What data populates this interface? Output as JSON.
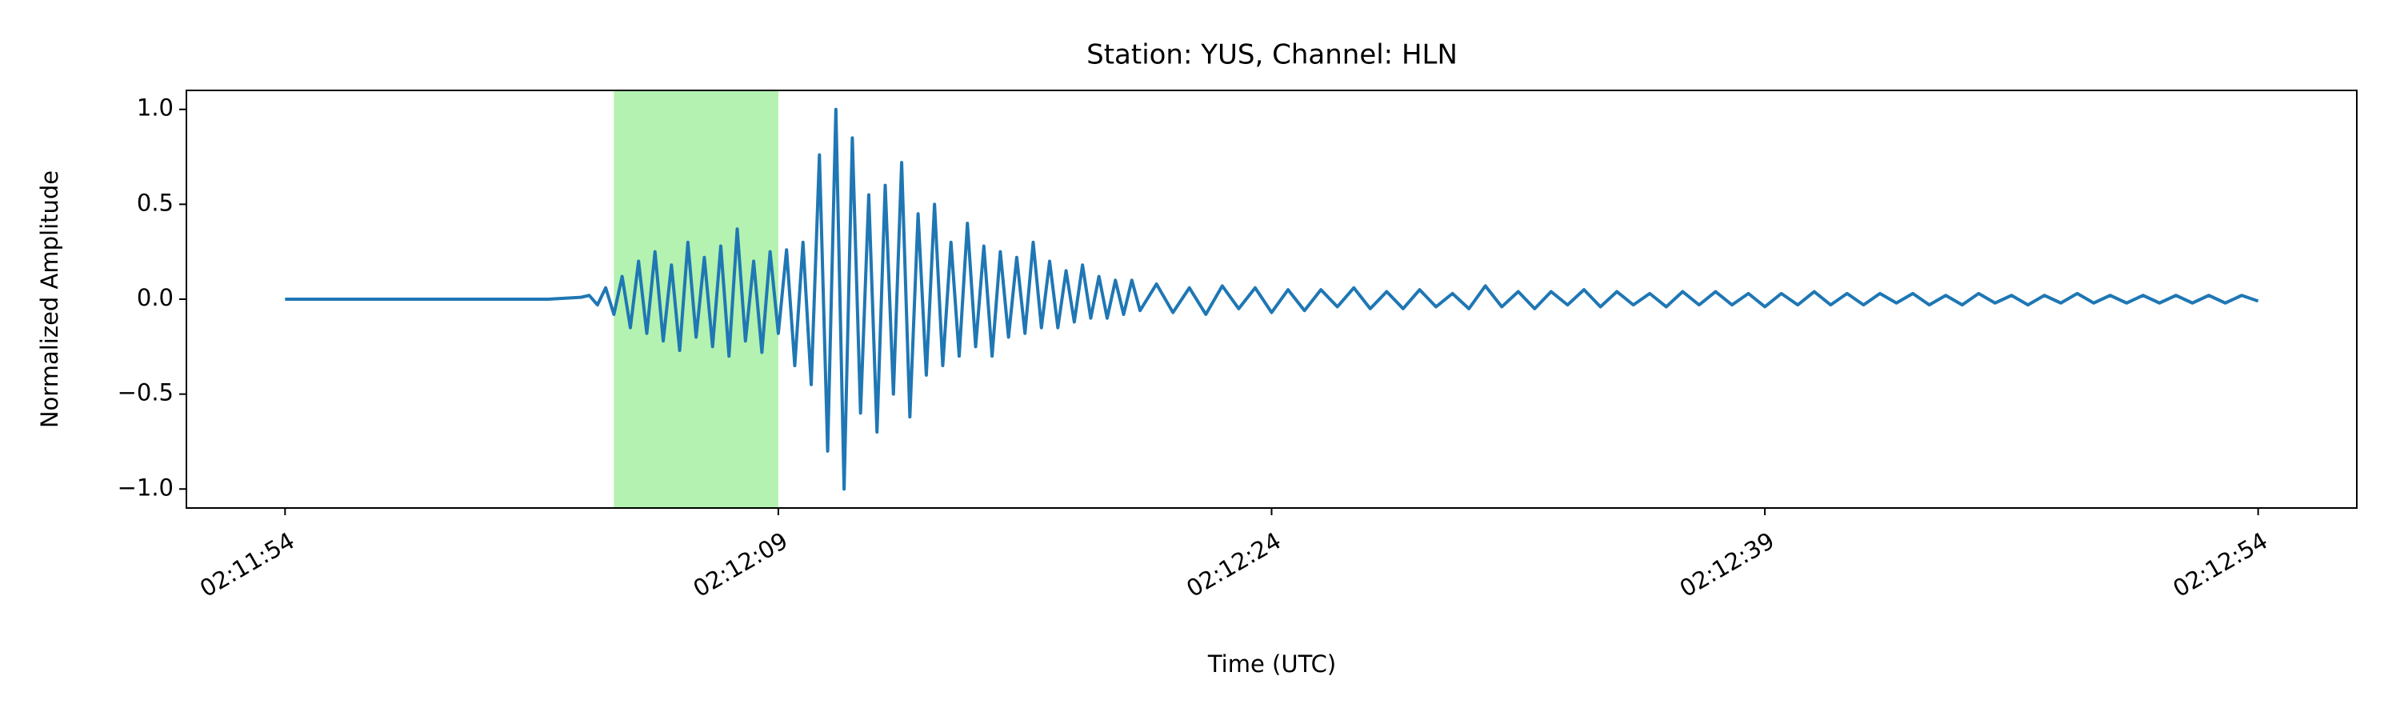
{
  "chart_data": {
    "type": "line",
    "title": "Station: YUS, Channel: HLN",
    "x_label": "Time (UTC)",
    "y_label": "Normalized Amplitude",
    "color": "#1f77b4",
    "x": [
      7914,
      7915,
      7916,
      7917,
      7918,
      7919,
      7920,
      7921,
      7922,
      7923,
      7923.25,
      7923.5,
      7923.75,
      7924,
      7924.25,
      7924.5,
      7924.75,
      7925,
      7925.25,
      7925.5,
      7925.75,
      7926,
      7926.25,
      7926.5,
      7926.75,
      7927,
      7927.25,
      7927.5,
      7927.75,
      7928,
      7928.25,
      7928.5,
      7928.75,
      7929,
      7929.25,
      7929.5,
      7929.75,
      7930,
      7930.25,
      7930.5,
      7930.75,
      7931,
      7931.25,
      7931.5,
      7931.75,
      7932,
      7932.25,
      7932.5,
      7932.75,
      7933,
      7933.25,
      7933.5,
      7933.75,
      7934,
      7934.25,
      7934.5,
      7934.75,
      7935,
      7935.25,
      7935.5,
      7935.75,
      7936,
      7936.25,
      7936.5,
      7936.75,
      7937,
      7937.25,
      7937.5,
      7937.75,
      7938,
      7938.25,
      7938.5,
      7938.75,
      7939,
      7939.25,
      7939.5,
      7939.75,
      7940,
      7940.5,
      7941,
      7941.5,
      7942,
      7942.5,
      7943,
      7943.5,
      7944,
      7944.5,
      7945,
      7945.5,
      7946,
      7946.5,
      7947,
      7947.5,
      7948,
      7948.5,
      7949,
      7949.5,
      7950,
      7950.5,
      7951,
      7951.5,
      7952,
      7952.5,
      7953,
      7953.5,
      7954,
      7954.5,
      7955,
      7955.5,
      7956,
      7956.5,
      7957,
      7957.5,
      7958,
      7958.5,
      7959,
      7959.5,
      7960,
      7960.5,
      7961,
      7961.5,
      7962,
      7962.5,
      7963,
      7963.5,
      7964,
      7964.5,
      7965,
      7965.5,
      7966,
      7966.5,
      7967,
      7967.5,
      7968,
      7968.5,
      7969,
      7969.5,
      7970,
      7970.5,
      7971,
      7971.5,
      7972,
      7972.5,
      7973,
      7973.5,
      7974
    ],
    "values": [
      0,
      0,
      0,
      0,
      0,
      0,
      0,
      0,
      0,
      0.01,
      0.02,
      -0.03,
      0.06,
      -0.08,
      0.12,
      -0.15,
      0.2,
      -0.18,
      0.25,
      -0.22,
      0.18,
      -0.27,
      0.3,
      -0.2,
      0.22,
      -0.25,
      0.28,
      -0.3,
      0.37,
      -0.22,
      0.2,
      -0.28,
      0.25,
      -0.18,
      0.26,
      -0.35,
      0.3,
      -0.45,
      0.76,
      -0.8,
      1.0,
      -1.0,
      0.85,
      -0.6,
      0.55,
      -0.7,
      0.6,
      -0.5,
      0.72,
      -0.62,
      0.45,
      -0.4,
      0.5,
      -0.35,
      0.3,
      -0.3,
      0.4,
      -0.25,
      0.28,
      -0.3,
      0.25,
      -0.2,
      0.22,
      -0.18,
      0.3,
      -0.15,
      0.2,
      -0.15,
      0.15,
      -0.12,
      0.18,
      -0.1,
      0.12,
      -0.1,
      0.1,
      -0.08,
      0.1,
      -0.06,
      0.08,
      -0.07,
      0.06,
      -0.08,
      0.07,
      -0.05,
      0.06,
      -0.07,
      0.05,
      -0.06,
      0.05,
      -0.04,
      0.06,
      -0.05,
      0.04,
      -0.05,
      0.05,
      -0.04,
      0.03,
      -0.05,
      0.07,
      -0.04,
      0.04,
      -0.05,
      0.04,
      -0.03,
      0.05,
      -0.04,
      0.04,
      -0.03,
      0.03,
      -0.04,
      0.04,
      -0.03,
      0.04,
      -0.03,
      0.03,
      -0.04,
      0.03,
      -0.03,
      0.04,
      -0.03,
      0.03,
      -0.03,
      0.03,
      -0.02,
      0.03,
      -0.03,
      0.02,
      -0.03,
      0.03,
      -0.02,
      0.02,
      -0.03,
      0.02,
      -0.02,
      0.03,
      -0.02,
      0.02,
      -0.02,
      0.02,
      -0.02,
      0.02,
      -0.02,
      0.02,
      -0.02,
      0.02,
      -0.01
    ],
    "shaded_span": {
      "x": [
        7924,
        7929
      ],
      "color": "#b3f2b0"
    },
    "xlim": [
      7911,
      7977
    ],
    "xticks": [
      {
        "value": 7914,
        "label": "02:11:54"
      },
      {
        "value": 7929,
        "label": "02:12:09"
      },
      {
        "value": 7944,
        "label": "02:12:24"
      },
      {
        "value": 7959,
        "label": "02:12:39"
      },
      {
        "value": 7974,
        "label": "02:12:54"
      }
    ],
    "ylim": [
      -1.1,
      1.1
    ],
    "yticks": [
      {
        "value": -1,
        "label": "−1.0"
      },
      {
        "value": -0.5,
        "label": "−0.5"
      },
      {
        "value": 0,
        "label": "0.0"
      },
      {
        "value": 0.5,
        "label": "0.5"
      },
      {
        "value": 1,
        "label": "1.0"
      }
    ]
  }
}
